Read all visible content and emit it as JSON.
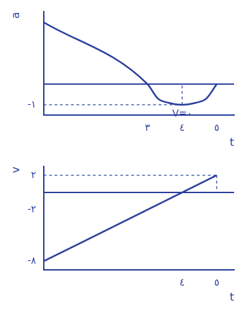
{
  "chart_data": [
    {
      "type": "line",
      "x_label": "t",
      "y_label": "a",
      "x": [
        0,
        3,
        3.3,
        3.6,
        4,
        4.4,
        4.7,
        5
      ],
      "values": [
        3,
        0,
        -0.7,
        -0.9,
        -1,
        -0.9,
        -0.7,
        0
      ],
      "color": "#2a3f9e",
      "xlim": [
        0,
        5.5
      ],
      "ylim": [
        -1.5,
        3.5
      ],
      "xticks": [
        {
          "value": 3,
          "label": "٣"
        },
        {
          "value": 4,
          "label": "٤"
        },
        {
          "value": 5,
          "label": "٥"
        }
      ],
      "yticks": [
        {
          "value": -1,
          "label": "-١"
        }
      ],
      "grid": false,
      "annotations": [
        {
          "text": "V=٠",
          "x": 4,
          "y": -1
        }
      ]
    },
    {
      "type": "line",
      "x_label": "t",
      "y_label": "v",
      "x": [
        0,
        5
      ],
      "values": [
        -8,
        2
      ],
      "color": "#2a3f9e",
      "xlim": [
        0,
        5.5
      ],
      "ylim": [
        -9,
        3
      ],
      "xticks": [
        {
          "value": 4,
          "label": "٤"
        },
        {
          "value": 5,
          "label": "٥"
        }
      ],
      "yticks": [
        {
          "value": -8,
          "label": "-٨"
        },
        {
          "value": -2,
          "label": "-٢"
        },
        {
          "value": 2,
          "label": "٢"
        }
      ],
      "grid": false
    }
  ]
}
